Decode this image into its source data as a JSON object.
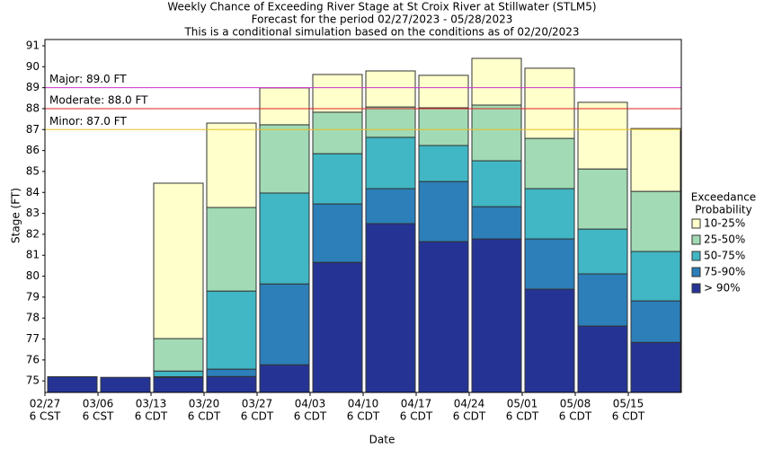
{
  "chart_data": {
    "type": "bar",
    "title": [
      "Weekly Chance of Exceeding River Stage at St Croix River at Stillwater (STLM5)",
      "Forecast for the period 02/27/2023 - 05/28/2023",
      "This is a conditional simulation based on the conditions as of 02/20/2023"
    ],
    "x_label": "Date",
    "y_label": "Stage (FT)",
    "categories": [
      "02/27",
      "03/06",
      "03/13",
      "03/20",
      "03/27",
      "04/03",
      "04/10",
      "04/17",
      "04/24",
      "05/01",
      "05/08",
      "05/15"
    ],
    "tick_times": [
      "6 CST",
      "6 CST",
      "6 CDT",
      "6 CDT",
      "6 CDT",
      "6 CDT",
      "6 CDT",
      "6 CDT",
      "6 CDT",
      "6 CDT",
      "6 CDT",
      "6 CDT"
    ],
    "series": [
      {
        "name": "> 90%",
        "color": "#253494",
        "values": [
          75.2,
          75.17,
          75.17,
          75.21,
          75.77,
          80.66,
          82.51,
          81.65,
          81.78,
          79.38,
          77.62,
          76.84
        ]
      },
      {
        "name": "75-90%",
        "color": "#2c7fb8",
        "values": [
          75.2,
          75.17,
          75.2,
          75.56,
          79.63,
          83.45,
          84.18,
          84.52,
          83.32,
          81.78,
          80.11,
          78.82
        ]
      },
      {
        "name": "50-75%",
        "color": "#41b6c4",
        "values": [
          75.2,
          75.17,
          75.47,
          79.29,
          83.97,
          85.85,
          86.63,
          86.24,
          85.51,
          84.18,
          82.25,
          81.18
        ]
      },
      {
        "name": "25-50%",
        "color": "#a1dab4",
        "values": [
          75.2,
          75.17,
          77.02,
          83.28,
          87.23,
          87.83,
          88.08,
          88.04,
          88.17,
          86.58,
          85.12,
          84.05
        ]
      },
      {
        "name": "10-25%",
        "color": "#ffffcc",
        "values": [
          75.2,
          75.17,
          84.44,
          87.31,
          88.99,
          89.63,
          89.8,
          89.59,
          90.4,
          89.93,
          88.3,
          87.05
        ]
      }
    ],
    "thresholds": [
      {
        "label": "Major: 89.0 FT",
        "value": 89,
        "color": "#cc33cc"
      },
      {
        "label": "Moderate: 88.0 FT",
        "value": 88,
        "color": "#dd2222"
      },
      {
        "label": "Minor: 87.0 FT",
        "value": 87,
        "color": "#e8c020"
      }
    ],
    "legend_title": [
      "Exceedance",
      "Probability"
    ],
    "legend": "right",
    "ylim": [
      74.45,
      91.3
    ],
    "yticks": [
      75,
      76,
      77,
      78,
      79,
      80,
      81,
      82,
      83,
      84,
      85,
      86,
      87,
      88,
      89,
      90,
      91
    ]
  }
}
